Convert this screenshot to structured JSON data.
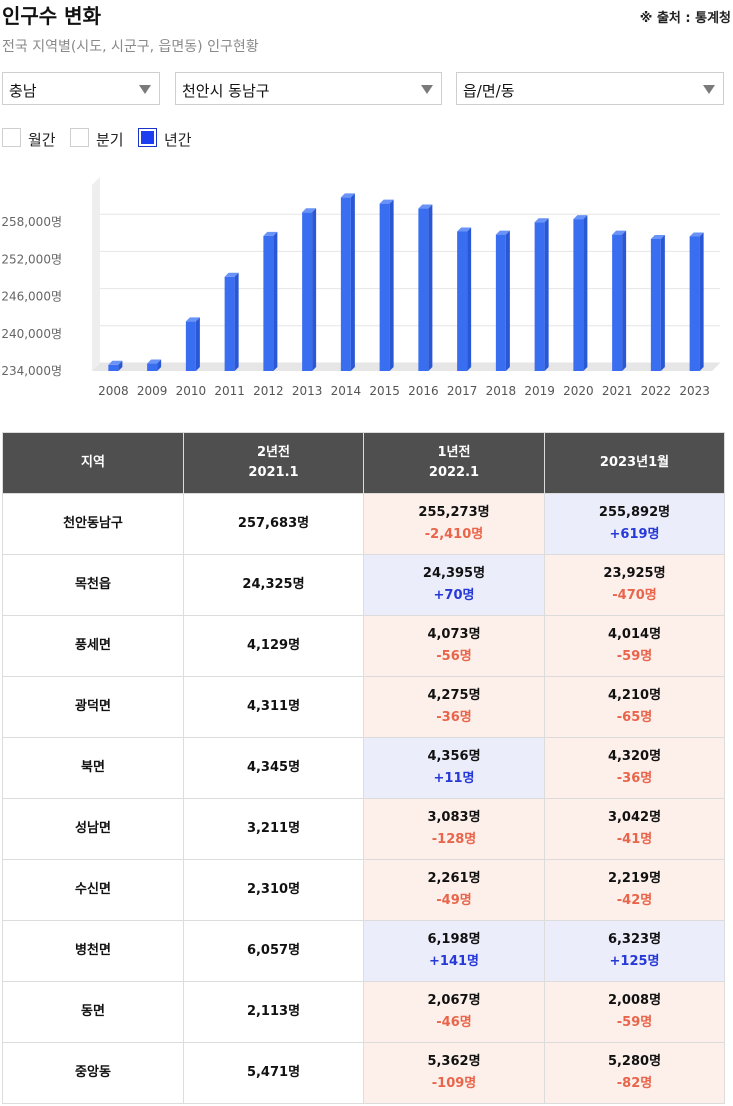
{
  "header": {
    "title": "인구수 변화",
    "subtitle": "전국 지역별(시도, 시군구, 읍면동) 인구현황",
    "source": "※ 출처 : 통계청"
  },
  "filters": {
    "province": "충남",
    "city": "천안시 동남구",
    "town": "읍/면/동"
  },
  "periods": [
    {
      "label": "월간",
      "checked": false
    },
    {
      "label": "분기",
      "checked": false
    },
    {
      "label": "년간",
      "checked": true
    }
  ],
  "chart_data": {
    "type": "bar",
    "title": "",
    "xlabel": "",
    "ylabel": "",
    "categories": [
      "2008",
      "2009",
      "2010",
      "2011",
      "2012",
      "2013",
      "2014",
      "2015",
      "2016",
      "2017",
      "2018",
      "2019",
      "2020",
      "2021",
      "2022",
      "2023"
    ],
    "values": [
      235000,
      235200,
      242000,
      249200,
      255800,
      259600,
      262000,
      261000,
      260200,
      256500,
      256000,
      258000,
      258500,
      256000,
      255300,
      255700
    ],
    "ylim": [
      234000,
      264000
    ],
    "yticks": [
      234000,
      240000,
      246000,
      252000,
      258000
    ],
    "ytick_labels": [
      "234,000명",
      "240,000명",
      "246,000명",
      "252,000명",
      "258,000명"
    ],
    "bar_color": "#3a6ef0",
    "grid": true,
    "legend": "none"
  },
  "table": {
    "headers": [
      {
        "line1": "지역",
        "line2": ""
      },
      {
        "line1": "2년전",
        "line2": "2021.1"
      },
      {
        "line1": "1년전",
        "line2": "2022.1"
      },
      {
        "line1": "2023년1월",
        "line2": ""
      }
    ],
    "rows": [
      {
        "region": "천안동남구",
        "y2": "257,683명",
        "y1": "255,273명",
        "y1chg": "-2,410명",
        "y1dir": "down",
        "y0": "255,892명",
        "y0chg": "+619명",
        "y0dir": "up"
      },
      {
        "region": "목천읍",
        "y2": "24,325명",
        "y1": "24,395명",
        "y1chg": "+70명",
        "y1dir": "up",
        "y0": "23,925명",
        "y0chg": "-470명",
        "y0dir": "down"
      },
      {
        "region": "풍세면",
        "y2": "4,129명",
        "y1": "4,073명",
        "y1chg": "-56명",
        "y1dir": "down",
        "y0": "4,014명",
        "y0chg": "-59명",
        "y0dir": "down"
      },
      {
        "region": "광덕면",
        "y2": "4,311명",
        "y1": "4,275명",
        "y1chg": "-36명",
        "y1dir": "down",
        "y0": "4,210명",
        "y0chg": "-65명",
        "y0dir": "down"
      },
      {
        "region": "북면",
        "y2": "4,345명",
        "y1": "4,356명",
        "y1chg": "+11명",
        "y1dir": "up",
        "y0": "4,320명",
        "y0chg": "-36명",
        "y0dir": "down"
      },
      {
        "region": "성남면",
        "y2": "3,211명",
        "y1": "3,083명",
        "y1chg": "-128명",
        "y1dir": "down",
        "y0": "3,042명",
        "y0chg": "-41명",
        "y0dir": "down"
      },
      {
        "region": "수신면",
        "y2": "2,310명",
        "y1": "2,261명",
        "y1chg": "-49명",
        "y1dir": "down",
        "y0": "2,219명",
        "y0chg": "-42명",
        "y0dir": "down"
      },
      {
        "region": "병천면",
        "y2": "6,057명",
        "y1": "6,198명",
        "y1chg": "+141명",
        "y1dir": "up",
        "y0": "6,323명",
        "y0chg": "+125명",
        "y0dir": "up"
      },
      {
        "region": "동면",
        "y2": "2,113명",
        "y1": "2,067명",
        "y1chg": "-46명",
        "y1dir": "down",
        "y0": "2,008명",
        "y0chg": "-59명",
        "y0dir": "down"
      },
      {
        "region": "중앙동",
        "y2": "5,471명",
        "y1": "5,362명",
        "y1chg": "-109명",
        "y1dir": "down",
        "y0": "5,280명",
        "y0chg": "-82명",
        "y0dir": "down"
      }
    ]
  }
}
